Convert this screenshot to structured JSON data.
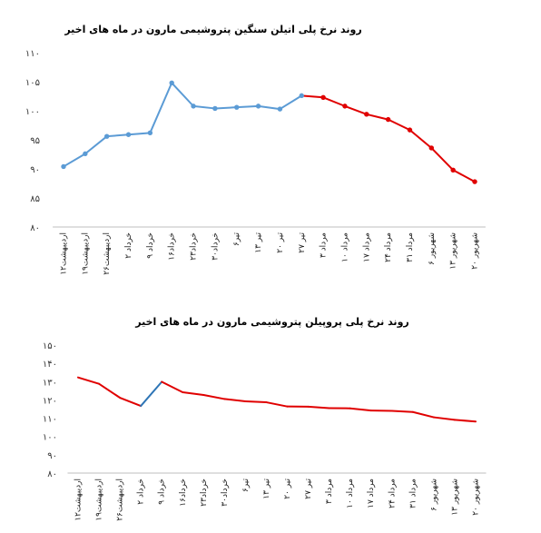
{
  "chart_data": [
    {
      "type": "line",
      "title": "روند نرخ پلی اتیلن سنگین پتروشیمی مارون در ماه های اخیر",
      "ylim": [
        80,
        110
      ],
      "yticks": [
        "۸۰",
        "۸۵",
        "۹۰",
        "۹۵",
        "۱۰۰",
        "۱۰۵",
        "۱۱۰"
      ],
      "categories": [
        "۱۲اردیبهشت",
        "۱۹اردیبهشت",
        "۲۶اردیبهشت",
        "۲ خرداد",
        "۹ خرداد",
        "۱۶خرداد",
        "۲۳خرداد",
        "۳۰خرداد",
        "۶تیر",
        "۱۳ تیر",
        "۲۰ تیر",
        "۲۷ تیر",
        "۳ مرداد",
        "۱۰ مرداد",
        "۱۷ مرداد",
        "۲۴ مرداد",
        "۳۱ مرداد",
        "شهریور ۶",
        "۱۳ شهریور",
        "۲۰ شهریور"
      ],
      "values": [
        90.4,
        92.6,
        95.6,
        95.9,
        96.2,
        104.8,
        100.8,
        100.4,
        100.6,
        100.8,
        100.3,
        102.6,
        102.3,
        100.8,
        99.4,
        98.5,
        96.7,
        93.6,
        89.8,
        87.8
      ],
      "series_colors": [
        "#5b9bd5",
        "#e00000"
      ],
      "color_split_index": 12,
      "grid": false
    },
    {
      "type": "line",
      "title": "روند نرخ پلی پروپیلن پتروشیمی مارون در ماه های اخیر",
      "ylim": [
        80,
        150
      ],
      "yticks": [
        "۸۰",
        "۹۰",
        "۱۰۰",
        "۱۱۰",
        "۱۲۰",
        "۱۳۰",
        "۱۴۰",
        "۱۵۰"
      ],
      "categories": [
        "۱۲اردیبهشت",
        "۱۹اردیبهشت",
        "۲۶اردیبهشت",
        "۲ خرداد",
        "۹ خرداد",
        "۱۶خرداد",
        "۲۳خرداد",
        "۳۰خرداد",
        "۶تیر",
        "۱۳ تیر",
        "۲۰ تیر",
        "۲۷ تیر",
        "۳ مرداد",
        "۱۰ مرداد",
        "۱۷ مرداد",
        "۲۴ مرداد",
        "۳۱ مرداد",
        "شهریور ۶",
        "۱۳ شهریور",
        "۲۰ شهریور"
      ],
      "values": [
        132.3,
        128.8,
        121.2,
        116.7,
        129.9,
        124.2,
        122.7,
        120.5,
        119.2,
        118.7,
        116.4,
        116.3,
        115.5,
        115.4,
        114.2,
        114.0,
        113.4,
        110.5,
        109.1,
        108.2
      ],
      "series_colors": [
        "#e00000",
        "#2e75b6"
      ],
      "highlight_segment": [
        3,
        4
      ],
      "grid": false
    }
  ]
}
